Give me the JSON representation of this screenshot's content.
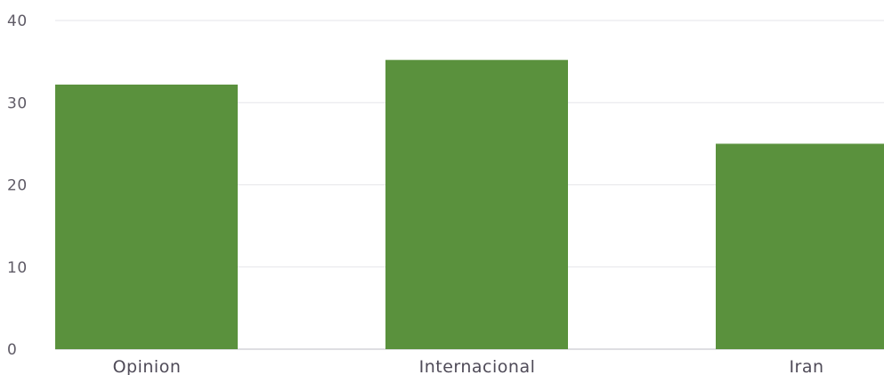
{
  "chart_data": {
    "type": "bar",
    "categories": [
      "Opinion",
      "Internacional",
      "Iran"
    ],
    "values": [
      32.2,
      35.2,
      25
    ],
    "ylim": [
      0,
      40
    ],
    "yticks": [
      0,
      10,
      20,
      30,
      40
    ],
    "title": "",
    "xlabel": "",
    "ylabel": "",
    "grid": true,
    "bar_color": "#5a913d"
  }
}
